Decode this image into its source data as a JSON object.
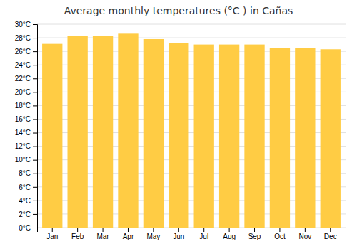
{
  "chart_data": {
    "type": "bar",
    "title": "Average monthly temperatures (°C ) in Cañas",
    "categories": [
      "Jan",
      "Feb",
      "Mar",
      "Apr",
      "May",
      "Jun",
      "Jul",
      "Aug",
      "Sep",
      "Oct",
      "Nov",
      "Dec"
    ],
    "values": [
      27.1,
      28.3,
      28.3,
      28.6,
      27.8,
      27.2,
      27.0,
      27.0,
      27.0,
      26.5,
      26.5,
      26.3
    ],
    "color": "#FFCC44",
    "ylim": [
      0,
      30
    ],
    "yticks": [
      {
        "value": 0,
        "label": "0°C"
      },
      {
        "value": 2,
        "label": "2°C"
      },
      {
        "value": 4,
        "label": "4°C"
      },
      {
        "value": 6,
        "label": "6°C"
      },
      {
        "value": 8,
        "label": "8°C"
      },
      {
        "value": 10,
        "label": "10°C"
      },
      {
        "value": 12,
        "label": "12°C"
      },
      {
        "value": 14,
        "label": "14°C"
      },
      {
        "value": 16,
        "label": "16°C"
      },
      {
        "value": 18,
        "label": "18°C"
      },
      {
        "value": 20,
        "label": "20°C"
      },
      {
        "value": 22,
        "label": "22°C"
      },
      {
        "value": 24,
        "label": "24°C"
      },
      {
        "value": 26,
        "label": "26°C"
      },
      {
        "value": 28,
        "label": "28°C"
      },
      {
        "value": 30,
        "label": "30°C"
      }
    ],
    "grid": true
  }
}
